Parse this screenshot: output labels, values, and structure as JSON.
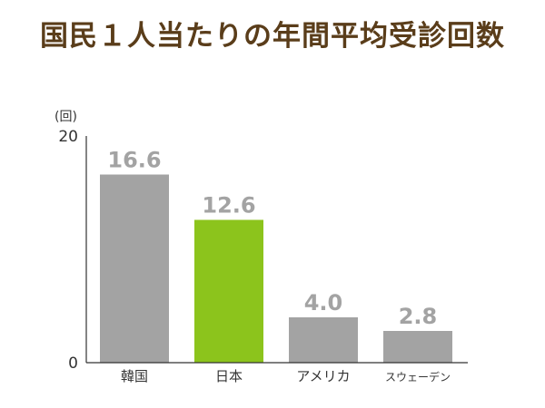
{
  "title": "国民１人当たりの年間平均受診回数",
  "colors": {
    "title": "#5a3d1a",
    "bar_default": "#a3a3a3",
    "bar_highlight": "#8cc41c",
    "axis": "#333333",
    "value_label": "#a3a3a3",
    "highlight_value_label": "#a3a3a3"
  },
  "chart_data": {
    "type": "bar",
    "title": "国民１人当たりの年間平均受診回数",
    "unit_label": "(回)",
    "categories": [
      "韓国",
      "日本",
      "アメリカ",
      "スウェーデン"
    ],
    "values": [
      16.6,
      12.6,
      4.0,
      2.8
    ],
    "value_labels": [
      "16.6",
      "12.6",
      "4.0",
      "2.8"
    ],
    "highlight_category": "日本",
    "ylim": [
      0,
      20
    ],
    "yticks": [
      "0",
      "20"
    ],
    "grid": false,
    "legend": "none"
  }
}
